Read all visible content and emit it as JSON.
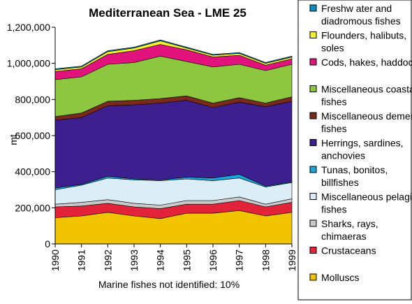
{
  "chart_data": {
    "type": "area",
    "stacked": true,
    "title": "Mediterranean Sea - LME 25",
    "ylabel": "mt",
    "xlabel": "",
    "note": "Marine fishes not identified: 10%",
    "x": [
      "1990",
      "1991",
      "1992",
      "1993",
      "1994",
      "1995",
      "1996",
      "1997",
      "1998",
      "1999"
    ],
    "ylim": [
      0,
      1200000
    ],
    "yticks": [
      "0",
      "200,000",
      "400,000",
      "600,000",
      "800,000",
      "1,000,000",
      "1,200,000"
    ],
    "grid": false,
    "legend_position": "right",
    "background": "#ffffff",
    "series": [
      {
        "name": "Molluscs",
        "color": "#f2c400",
        "values": [
          145000,
          155000,
          175000,
          155000,
          140000,
          170000,
          170000,
          185000,
          155000,
          175000
        ]
      },
      {
        "name": "Crustaceans",
        "color": "#e2233a",
        "values": [
          60000,
          55000,
          50000,
          50000,
          55000,
          50000,
          50000,
          55000,
          50000,
          55000
        ]
      },
      {
        "name": "Sharks, rays, chimaeras",
        "color": "#c9c9c9",
        "values": [
          15000,
          20000,
          20000,
          20000,
          20000,
          20000,
          20000,
          20000,
          15000,
          20000
        ]
      },
      {
        "name": "Miscellaneous pelagic fishes",
        "color": "#dbeef8",
        "values": [
          80000,
          95000,
          120000,
          130000,
          135000,
          120000,
          110000,
          105000,
          95000,
          90000
        ]
      },
      {
        "name": "Tunas, bonitos, billfishes",
        "color": "#19a7dc",
        "values": [
          10000,
          5000,
          10000,
          5000,
          5000,
          10000,
          15000,
          20000,
          5000,
          5000
        ]
      },
      {
        "name": "Herrings, sardines, anchovies",
        "color": "#3e1f8f",
        "values": [
          375000,
          370000,
          390000,
          410000,
          425000,
          425000,
          390000,
          400000,
          440000,
          445000
        ]
      },
      {
        "name": "Miscellaneous demersal fishes",
        "color": "#7a2a1c",
        "values": [
          20000,
          25000,
          25000,
          25000,
          25000,
          25000,
          25000,
          25000,
          20000,
          25000
        ]
      },
      {
        "name": "Miscellaneous coastal fishes",
        "color": "#8dc63f",
        "values": [
          205000,
          200000,
          205000,
          210000,
          235000,
          190000,
          200000,
          185000,
          180000,
          180000
        ]
      },
      {
        "name": "Cods, hakes, haddocks",
        "color": "#e3137d",
        "values": [
          45000,
          45000,
          55000,
          65000,
          65000,
          65000,
          55000,
          50000,
          30000,
          30000
        ]
      },
      {
        "name": "Flounders, halibuts, soles",
        "color": "#f6ef2a",
        "values": [
          10000,
          10000,
          15000,
          15000,
          20000,
          10000,
          10000,
          10000,
          10000,
          10000
        ]
      },
      {
        "name": "Freshwater and diadromous fishes",
        "color": "#0a8fc0",
        "values": [
          5000,
          5000,
          5000,
          5000,
          5000,
          5000,
          5000,
          5000,
          5000,
          5000
        ]
      }
    ],
    "legend": [
      {
        "label": "Freshw ater and diadromous fishes",
        "series": 10
      },
      {
        "label": "Flounders, halibuts, soles",
        "series": 9
      },
      {
        "label": "Cods, hakes, haddocks",
        "series": 8
      },
      {
        "label": "Miscellaneous coastal fishes",
        "series": 7
      },
      {
        "label": "Miscellaneous demersal fishes",
        "series": 6
      },
      {
        "label": "Herrings, sardines, anchovies",
        "series": 5
      },
      {
        "label": "Tunas, bonitos, billfishes",
        "series": 4
      },
      {
        "label": "Miscellaneous pelagic fishes",
        "series": 3
      },
      {
        "label": "Sharks, rays, chimaeras",
        "series": 2
      },
      {
        "label": "Crustaceans",
        "series": 1
      },
      {
        "label": "Molluscs",
        "series": 0
      }
    ]
  }
}
